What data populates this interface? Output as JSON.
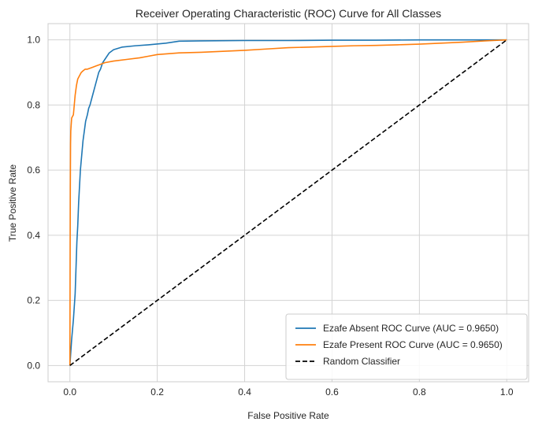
{
  "chart_data": {
    "type": "line",
    "title": "Receiver Operating Characteristic (ROC) Curve for All Classes",
    "xlabel": "False Positive Rate",
    "ylabel": "True Positive Rate",
    "xlim": [
      -0.05,
      1.05
    ],
    "ylim": [
      -0.05,
      1.05
    ],
    "xticks": [
      0.0,
      0.2,
      0.4,
      0.6,
      0.8,
      1.0
    ],
    "xtick_labels": [
      "0.0",
      "0.2",
      "0.4",
      "0.6",
      "0.8",
      "1.0"
    ],
    "yticks": [
      0.0,
      0.2,
      0.4,
      0.6,
      0.8,
      1.0
    ],
    "ytick_labels": [
      "0.0",
      "0.2",
      "0.4",
      "0.6",
      "0.8",
      "1.0"
    ],
    "grid": true,
    "legend_position": "lower-right",
    "series": [
      {
        "name": "Ezafe Absent ROC Curve (AUC = 0.9650)",
        "color": "#1f77b4",
        "style": "solid",
        "x": [
          0.0,
          0.002,
          0.004,
          0.006,
          0.008,
          0.01,
          0.012,
          0.014,
          0.016,
          0.018,
          0.02,
          0.022,
          0.024,
          0.026,
          0.028,
          0.03,
          0.033,
          0.036,
          0.04,
          0.043,
          0.046,
          0.05,
          0.054,
          0.058,
          0.062,
          0.066,
          0.07,
          0.075,
          0.08,
          0.09,
          0.1,
          0.12,
          0.15,
          0.18,
          0.22,
          0.25,
          0.3,
          0.4,
          0.5,
          0.6,
          0.7,
          0.8,
          0.9,
          1.0
        ],
        "y": [
          0.0,
          0.04,
          0.08,
          0.11,
          0.14,
          0.18,
          0.22,
          0.3,
          0.38,
          0.43,
          0.5,
          0.55,
          0.6,
          0.63,
          0.66,
          0.69,
          0.72,
          0.75,
          0.77,
          0.79,
          0.8,
          0.82,
          0.84,
          0.86,
          0.88,
          0.9,
          0.91,
          0.93,
          0.94,
          0.96,
          0.97,
          0.978,
          0.982,
          0.985,
          0.99,
          0.996,
          0.997,
          0.998,
          0.998,
          0.999,
          0.999,
          1.0,
          1.0,
          1.0
        ]
      },
      {
        "name": "Ezafe Present ROC Curve (AUC = 0.9650)",
        "color": "#ff7f0e",
        "style": "solid",
        "x": [
          0.0,
          0.0005,
          0.001,
          0.0015,
          0.002,
          0.003,
          0.004,
          0.006,
          0.008,
          0.01,
          0.012,
          0.015,
          0.018,
          0.022,
          0.026,
          0.03,
          0.035,
          0.04,
          0.05,
          0.06,
          0.07,
          0.08,
          0.1,
          0.13,
          0.16,
          0.18,
          0.2,
          0.25,
          0.3,
          0.35,
          0.4,
          0.45,
          0.5,
          0.55,
          0.6,
          0.65,
          0.7,
          0.75,
          0.8,
          0.85,
          0.9,
          0.95,
          1.0
        ],
        "y": [
          0.0,
          0.3,
          0.55,
          0.68,
          0.72,
          0.74,
          0.76,
          0.765,
          0.77,
          0.8,
          0.83,
          0.86,
          0.88,
          0.89,
          0.9,
          0.905,
          0.91,
          0.91,
          0.915,
          0.92,
          0.925,
          0.93,
          0.935,
          0.94,
          0.945,
          0.95,
          0.955,
          0.96,
          0.962,
          0.965,
          0.968,
          0.972,
          0.976,
          0.978,
          0.98,
          0.982,
          0.983,
          0.985,
          0.987,
          0.99,
          0.993,
          0.997,
          1.0
        ]
      },
      {
        "name": "Random Classifier",
        "color": "#000000",
        "style": "dashed",
        "x": [
          0.0,
          1.0
        ],
        "y": [
          0.0,
          1.0
        ]
      }
    ]
  }
}
